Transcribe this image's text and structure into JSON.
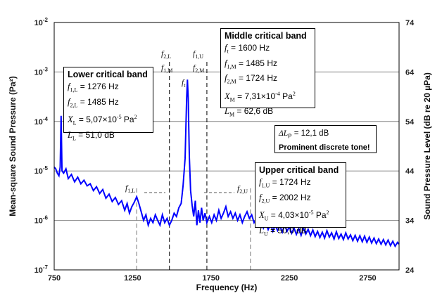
{
  "chart_data": {
    "type": "line",
    "xlabel": "Frequency (Hz)",
    "ylabel": "Mean-square Sound Pressure (Pa²)",
    "ylabel2": "Sound Pressure Level (dB re 20 µPa)",
    "xlim": [
      750,
      2950
    ],
    "ylim_log": [
      1e-07,
      0.01
    ],
    "y2lim_db": [
      24,
      74
    ],
    "x_ticks": [
      "750",
      "1250",
      "1750",
      "2250",
      "2750"
    ],
    "x_tick_values": [
      750,
      1250,
      1750,
      2250,
      2750
    ],
    "y_ticks_exp": [
      "-7",
      "-6",
      "-5",
      "-4",
      "-3",
      "-2"
    ],
    "y2_ticks": [
      "24",
      "34",
      "44",
      "54",
      "64",
      "74"
    ],
    "vlines_long": [
      1485,
      1724
    ],
    "vlines_short": [
      1276,
      2002
    ],
    "series": [
      {
        "name": "spectrum",
        "color": "#0000ff",
        "points": [
          [
            750,
            1.2e-05
          ],
          [
            760,
            1.1e-05
          ],
          [
            770,
            9e-06
          ],
          [
            780,
            8e-06
          ],
          [
            788,
            1.2e-05
          ],
          [
            794,
            0.00013
          ],
          [
            800,
            1e-05
          ],
          [
            810,
            9e-06
          ],
          [
            825,
            1.1e-05
          ],
          [
            840,
            7e-06
          ],
          [
            860,
            8.5e-06
          ],
          [
            880,
            6e-06
          ],
          [
            900,
            7.5e-06
          ],
          [
            920,
            5.5e-06
          ],
          [
            940,
            6.5e-06
          ],
          [
            960,
            5e-06
          ],
          [
            980,
            5.5e-06
          ],
          [
            1000,
            4e-06
          ],
          [
            1020,
            4.8e-06
          ],
          [
            1040,
            3.5e-06
          ],
          [
            1060,
            4.2e-06
          ],
          [
            1080,
            2.8e-06
          ],
          [
            1100,
            3.4e-06
          ],
          [
            1120,
            2.4e-06
          ],
          [
            1140,
            2.9e-06
          ],
          [
            1160,
            2.1e-06
          ],
          [
            1180,
            2.5e-06
          ],
          [
            1200,
            1.6e-06
          ],
          [
            1215,
            2.2e-06
          ],
          [
            1230,
            1.4e-06
          ],
          [
            1245,
            1.9e-06
          ],
          [
            1260,
            2.3e-06
          ],
          [
            1276,
            3e-06
          ],
          [
            1290,
            2.2e-06
          ],
          [
            1305,
            1.5e-06
          ],
          [
            1320,
            1e-06
          ],
          [
            1335,
            1.3e-06
          ],
          [
            1350,
            8e-07
          ],
          [
            1365,
            1.1e-06
          ],
          [
            1380,
            9e-07
          ],
          [
            1395,
            1.3e-06
          ],
          [
            1410,
            1e-06
          ],
          [
            1425,
            8e-07
          ],
          [
            1440,
            1.3e-06
          ],
          [
            1455,
            9e-07
          ],
          [
            1470,
            1.1e-06
          ],
          [
            1485,
            8e-07
          ],
          [
            1500,
            1e-06
          ],
          [
            1515,
            1.4e-06
          ],
          [
            1530,
            1.2e-06
          ],
          [
            1545,
            1.8e-06
          ],
          [
            1560,
            2.2e-06
          ],
          [
            1572,
            5e-06
          ],
          [
            1585,
            1.8e-05
          ],
          [
            1595,
            0.0003
          ],
          [
            1600,
            0.0007
          ],
          [
            1605,
            0.0003
          ],
          [
            1612,
            2e-05
          ],
          [
            1620,
            4e-06
          ],
          [
            1630,
            2e-06
          ],
          [
            1640,
            1.2e-06
          ],
          [
            1650,
            2.5e-06
          ],
          [
            1660,
            8e-07
          ],
          [
            1670,
            1.6e-06
          ],
          [
            1680,
            9e-07
          ],
          [
            1690,
            1.8e-06
          ],
          [
            1700,
            1e-06
          ],
          [
            1712,
            1.4e-06
          ],
          [
            1724,
            9e-07
          ],
          [
            1740,
            1.2e-06
          ],
          [
            1755,
            9e-07
          ],
          [
            1770,
            1.3e-06
          ],
          [
            1785,
            1e-06
          ],
          [
            1800,
            1.6e-06
          ],
          [
            1815,
            1.1e-06
          ],
          [
            1830,
            1.4e-06
          ],
          [
            1845,
            1.9e-06
          ],
          [
            1860,
            1.2e-06
          ],
          [
            1875,
            1.5e-06
          ],
          [
            1890,
            1.1e-06
          ],
          [
            1905,
            1.4e-06
          ],
          [
            1920,
            1e-06
          ],
          [
            1935,
            1.3e-06
          ],
          [
            1950,
            9e-07
          ],
          [
            1965,
            1.2e-06
          ],
          [
            1980,
            1.5e-06
          ],
          [
            1995,
            1.1e-06
          ],
          [
            2010,
            1.3e-06
          ],
          [
            2025,
            9e-07
          ],
          [
            2040,
            1.1e-06
          ],
          [
            2055,
            8e-07
          ],
          [
            2070,
            1e-06
          ],
          [
            2085,
            7e-07
          ],
          [
            2100,
            9e-07
          ],
          [
            2115,
            6.5e-07
          ],
          [
            2130,
            8.5e-07
          ],
          [
            2145,
            6e-07
          ],
          [
            2160,
            8e-07
          ],
          [
            2175,
            6.2e-07
          ],
          [
            2190,
            7.8e-07
          ],
          [
            2205,
            5.8e-07
          ],
          [
            2220,
            8.2e-07
          ],
          [
            2235,
            6e-07
          ],
          [
            2250,
            7.5e-07
          ],
          [
            2265,
            5.5e-07
          ],
          [
            2280,
            7e-07
          ],
          [
            2295,
            5.2e-07
          ],
          [
            2310,
            6.8e-07
          ],
          [
            2325,
            5e-07
          ],
          [
            2340,
            7e-07
          ],
          [
            2355,
            5.3e-07
          ],
          [
            2370,
            6.6e-07
          ],
          [
            2385,
            4.9e-07
          ],
          [
            2400,
            6.4e-07
          ],
          [
            2415,
            4.7e-07
          ],
          [
            2430,
            6e-07
          ],
          [
            2445,
            4.5e-07
          ],
          [
            2460,
            5.8e-07
          ],
          [
            2475,
            4.4e-07
          ],
          [
            2490,
            6.2e-07
          ],
          [
            2505,
            4.6e-07
          ],
          [
            2520,
            5.6e-07
          ],
          [
            2535,
            4.2e-07
          ],
          [
            2550,
            5.9e-07
          ],
          [
            2565,
            4.3e-07
          ],
          [
            2580,
            5.3e-07
          ],
          [
            2595,
            4.1e-07
          ],
          [
            2610,
            5.6e-07
          ],
          [
            2625,
            4.2e-07
          ],
          [
            2640,
            5.1e-07
          ],
          [
            2655,
            3.9e-07
          ],
          [
            2670,
            5e-07
          ],
          [
            2685,
            3.8e-07
          ],
          [
            2700,
            4.9e-07
          ],
          [
            2715,
            3.7e-07
          ],
          [
            2730,
            4.8e-07
          ],
          [
            2745,
            3.6e-07
          ],
          [
            2760,
            4.6e-07
          ],
          [
            2775,
            3.5e-07
          ],
          [
            2790,
            4.4e-07
          ],
          [
            2805,
            3.4e-07
          ],
          [
            2820,
            4.2e-07
          ],
          [
            2835,
            3.3e-07
          ],
          [
            2850,
            4.1e-07
          ],
          [
            2865,
            3.2e-07
          ],
          [
            2880,
            4e-07
          ],
          [
            2895,
            3.1e-07
          ],
          [
            2910,
            3.8e-07
          ],
          [
            2925,
            3e-07
          ],
          [
            2940,
            3.6e-07
          ],
          [
            2950,
            3.3e-07
          ]
        ]
      }
    ]
  },
  "annotations": {
    "f2L": "f",
    "f2L_sub": "2,L",
    "f1M": "f",
    "f1M_sub": "1,M",
    "f1U": "f",
    "f1U_sub": "1,U",
    "f2M": "f",
    "f2M_sub": "2,M",
    "ft": "f",
    "ft_sub": "t",
    "f1L": "f",
    "f1L_sub": "1,L",
    "f2U": "f",
    "f2U_sub": "2,U"
  },
  "lower_box": {
    "title": "Lower critical band",
    "l1_sym": "f",
    "l1_sub": "1,L",
    "l1_val": " = 1276 Hz",
    "l2_sym": "f",
    "l2_sub": "2,L",
    "l2_val": " = 1485 Hz",
    "l3_sym": "X",
    "l3_sub": "L",
    "l3_val": " = 5,07×10",
    "l3_exp": "-5",
    "l3_unit": " Pa",
    "l3_unit_exp": "2",
    "l4_sym": "L",
    "l4_sub": "L",
    "l4_val": " = 51,0 dB"
  },
  "middle_box": {
    "title": "Middle critical band",
    "l1_sym": "f",
    "l1_sub": "t",
    "l1_val": " = 1600 Hz",
    "l2_sym": "f",
    "l2_sub": "1,M",
    "l2_val": " = 1485 Hz",
    "l3_sym": "f",
    "l3_sub": "2,M",
    "l3_val": " = 1724 Hz",
    "l4_sym": "X",
    "l4_sub": "M",
    "l4_val": " = 7,31×10",
    "l4_exp": "-4",
    "l4_unit": " Pa",
    "l4_unit_exp": "2",
    "l5_sym": "L",
    "l5_sub": "M",
    "l5_val": " = 62,6 dB"
  },
  "upper_box": {
    "title": "Upper critical band",
    "l1_sym": "f",
    "l1_sub": "1,U",
    "l1_val": " = 1724 Hz",
    "l2_sym": "f",
    "l2_sub": "2,U",
    "l2_val": " = 2002 Hz",
    "l3_sym": "X",
    "l3_sub": "U",
    "l3_val": " = 4,03×10",
    "l3_exp": "-5",
    "l3_unit": " Pa",
    "l3_unit_exp": "2",
    "l4_sym": "L",
    "l4_sub": "U",
    "l4_val": " = 50,0 dB"
  },
  "tone_box": {
    "line1_sym": "ΔL",
    "line1_sub": "P",
    "line1_val": " = 12,1 dB",
    "line2": "Prominent discrete tone!"
  }
}
